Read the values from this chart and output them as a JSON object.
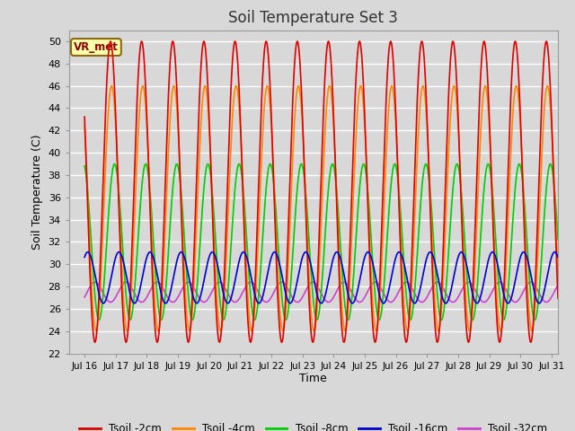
{
  "title": "Soil Temperature Set 3",
  "xlabel": "Time",
  "ylabel": "Soil Temperature (C)",
  "ylim": [
    22,
    51
  ],
  "yticks": [
    22,
    24,
    26,
    28,
    30,
    32,
    34,
    36,
    38,
    40,
    42,
    44,
    46,
    48,
    50
  ],
  "xlim_days": [
    15.5,
    31.2
  ],
  "xtick_positions": [
    16,
    17,
    18,
    19,
    20,
    21,
    22,
    23,
    24,
    25,
    26,
    27,
    28,
    29,
    30,
    31
  ],
  "xtick_labels": [
    "Jul 16",
    "Jul 17",
    "Jul 18",
    "Jul 19",
    "Jul 20",
    "Jul 21",
    "Jul 22",
    "Jul 23",
    "Jul 24",
    "Jul 25",
    "Jul 26",
    "Jul 27",
    "Jul 28",
    "Jul 29",
    "Jul 30",
    "Jul 31"
  ],
  "legend_labels": [
    "Tsoil -2cm",
    "Tsoil -4cm",
    "Tsoil -8cm",
    "Tsoil -16cm",
    "Tsoil -32cm"
  ],
  "legend_colors": [
    "#dd0000",
    "#ff8800",
    "#00cc00",
    "#0000cc",
    "#cc44cc"
  ],
  "annotation_text": "VR_met",
  "bg_color": "#d8d8d8",
  "plot_bg_color": "#d8d8d8",
  "grid_color": "#ffffff",
  "n_days": 15.5,
  "hours_per_day": 24,
  "dt_hours": 0.25
}
